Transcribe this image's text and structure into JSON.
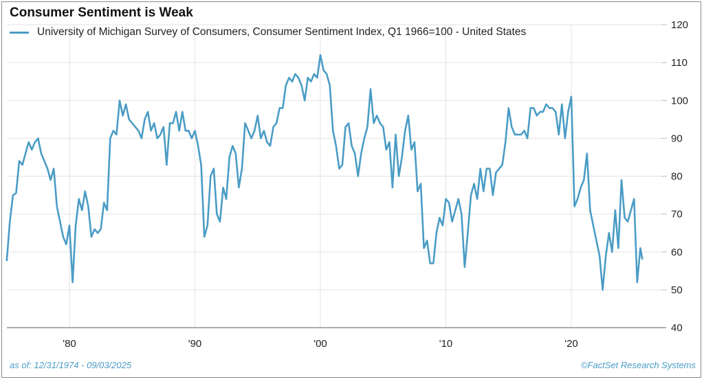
{
  "chart_data": {
    "type": "line",
    "title": "Consumer Sentiment is Weak",
    "xlabel": "",
    "ylabel": "",
    "ylim": [
      40,
      120
    ],
    "yticks": [
      "40",
      "50",
      "60",
      "70",
      "80",
      "90",
      "100",
      "110",
      "120"
    ],
    "xticks": [
      {
        "year": 1980,
        "label": "'80"
      },
      {
        "year": 1990,
        "label": "'90"
      },
      {
        "year": 2000,
        "label": "'00"
      },
      {
        "year": 2010,
        "label": "'10"
      },
      {
        "year": 2020,
        "label": "'20"
      }
    ],
    "grid": true,
    "legend_position": "top-left",
    "color": "#4a9cc5",
    "series": [
      {
        "name": "University of Michigan Survey of Consumers, Consumer Sentiment Index, Q1 1966=100 - United States",
        "points": [
          [
            "1975-01",
            57.6
          ],
          [
            "1975-04",
            68
          ],
          [
            "1975-07",
            75
          ],
          [
            "1975-10",
            75.5
          ],
          [
            "1976-01",
            84
          ],
          [
            "1976-04",
            83
          ],
          [
            "1976-07",
            86
          ],
          [
            "1976-10",
            89
          ],
          [
            "1977-01",
            87
          ],
          [
            "1977-04",
            89
          ],
          [
            "1977-07",
            90
          ],
          [
            "1977-10",
            86
          ],
          [
            "1978-01",
            84
          ],
          [
            "1978-04",
            82
          ],
          [
            "1978-07",
            79
          ],
          [
            "1978-10",
            82
          ],
          [
            "1979-01",
            72
          ],
          [
            "1979-04",
            68
          ],
          [
            "1979-07",
            64
          ],
          [
            "1979-10",
            62
          ],
          [
            "1980-01",
            67
          ],
          [
            "1980-04",
            52
          ],
          [
            "1980-07",
            67
          ],
          [
            "1980-10",
            74
          ],
          [
            "1981-01",
            71
          ],
          [
            "1981-04",
            76
          ],
          [
            "1981-07",
            72
          ],
          [
            "1981-10",
            64
          ],
          [
            "1982-01",
            66
          ],
          [
            "1982-04",
            65
          ],
          [
            "1982-07",
            66
          ],
          [
            "1982-10",
            73
          ],
          [
            "1983-01",
            71
          ],
          [
            "1983-04",
            90
          ],
          [
            "1983-07",
            92
          ],
          [
            "1983-10",
            91
          ],
          [
            "1984-01",
            100
          ],
          [
            "1984-04",
            96
          ],
          [
            "1984-07",
            99
          ],
          [
            "1984-10",
            95
          ],
          [
            "1985-01",
            94
          ],
          [
            "1985-04",
            93
          ],
          [
            "1985-07",
            92
          ],
          [
            "1985-10",
            90
          ],
          [
            "1986-01",
            95
          ],
          [
            "1986-04",
            97
          ],
          [
            "1986-07",
            92
          ],
          [
            "1986-10",
            94
          ],
          [
            "1987-01",
            90
          ],
          [
            "1987-04",
            91
          ],
          [
            "1987-07",
            93
          ],
          [
            "1987-10",
            83
          ],
          [
            "1988-01",
            94
          ],
          [
            "1988-04",
            94
          ],
          [
            "1988-07",
            97
          ],
          [
            "1988-10",
            92
          ],
          [
            "1989-01",
            97
          ],
          [
            "1989-04",
            92
          ],
          [
            "1989-07",
            92
          ],
          [
            "1989-10",
            90
          ],
          [
            "1990-01",
            92
          ],
          [
            "1990-04",
            88
          ],
          [
            "1990-07",
            83
          ],
          [
            "1990-10",
            64
          ],
          [
            "1991-01",
            67
          ],
          [
            "1991-04",
            80
          ],
          [
            "1991-07",
            82
          ],
          [
            "1991-10",
            70
          ],
          [
            "1992-01",
            68
          ],
          [
            "1992-04",
            77
          ],
          [
            "1992-07",
            74
          ],
          [
            "1992-10",
            85
          ],
          [
            "1993-01",
            88
          ],
          [
            "1993-04",
            86
          ],
          [
            "1993-07",
            77
          ],
          [
            "1993-10",
            82
          ],
          [
            "1994-01",
            94
          ],
          [
            "1994-04",
            92
          ],
          [
            "1994-07",
            90
          ],
          [
            "1994-10",
            92
          ],
          [
            "1995-01",
            96
          ],
          [
            "1995-04",
            90
          ],
          [
            "1995-07",
            92
          ],
          [
            "1995-10",
            89
          ],
          [
            "1996-01",
            88
          ],
          [
            "1996-04",
            93
          ],
          [
            "1996-07",
            94
          ],
          [
            "1996-10",
            98
          ],
          [
            "1997-01",
            98
          ],
          [
            "1997-04",
            104
          ],
          [
            "1997-07",
            106
          ],
          [
            "1997-10",
            105
          ],
          [
            "1998-01",
            107
          ],
          [
            "1998-04",
            106
          ],
          [
            "1998-07",
            104
          ],
          [
            "1998-10",
            100
          ],
          [
            "1999-01",
            106
          ],
          [
            "1999-04",
            105
          ],
          [
            "1999-07",
            107
          ],
          [
            "1999-10",
            106
          ],
          [
            "2000-01",
            112
          ],
          [
            "2000-04",
            108
          ],
          [
            "2000-07",
            107
          ],
          [
            "2000-10",
            104
          ],
          [
            "2001-01",
            92
          ],
          [
            "2001-04",
            88
          ],
          [
            "2001-07",
            82
          ],
          [
            "2001-10",
            83
          ],
          [
            "2002-01",
            93
          ],
          [
            "2002-04",
            94
          ],
          [
            "2002-07",
            88
          ],
          [
            "2002-10",
            86
          ],
          [
            "2003-01",
            80
          ],
          [
            "2003-04",
            86
          ],
          [
            "2003-07",
            90
          ],
          [
            "2003-10",
            93
          ],
          [
            "2004-01",
            103
          ],
          [
            "2004-04",
            94
          ],
          [
            "2004-07",
            96
          ],
          [
            "2004-10",
            94
          ],
          [
            "2005-01",
            93
          ],
          [
            "2005-04",
            87
          ],
          [
            "2005-07",
            89
          ],
          [
            "2005-10",
            77
          ],
          [
            "2006-01",
            91
          ],
          [
            "2006-04",
            80
          ],
          [
            "2006-07",
            85
          ],
          [
            "2006-10",
            92
          ],
          [
            "2007-01",
            96
          ],
          [
            "2007-04",
            87
          ],
          [
            "2007-07",
            89
          ],
          [
            "2007-10",
            76
          ],
          [
            "2008-01",
            78
          ],
          [
            "2008-04",
            61
          ],
          [
            "2008-07",
            63
          ],
          [
            "2008-10",
            57
          ],
          [
            "2009-01",
            57
          ],
          [
            "2009-04",
            65
          ],
          [
            "2009-07",
            69
          ],
          [
            "2009-10",
            67
          ],
          [
            "2010-01",
            74
          ],
          [
            "2010-04",
            73
          ],
          [
            "2010-07",
            68
          ],
          [
            "2010-10",
            71
          ],
          [
            "2011-01",
            74
          ],
          [
            "2011-04",
            70
          ],
          [
            "2011-07",
            56
          ],
          [
            "2011-10",
            65
          ],
          [
            "2012-01",
            75
          ],
          [
            "2012-04",
            78
          ],
          [
            "2012-07",
            74
          ],
          [
            "2012-10",
            82
          ],
          [
            "2013-01",
            76
          ],
          [
            "2013-04",
            82
          ],
          [
            "2013-07",
            82
          ],
          [
            "2013-10",
            75
          ],
          [
            "2014-01",
            81
          ],
          [
            "2014-04",
            82
          ],
          [
            "2014-07",
            83
          ],
          [
            "2014-10",
            89
          ],
          [
            "2015-01",
            98
          ],
          [
            "2015-04",
            93
          ],
          [
            "2015-07",
            91
          ],
          [
            "2015-10",
            91
          ],
          [
            "2016-01",
            91
          ],
          [
            "2016-04",
            92
          ],
          [
            "2016-07",
            90
          ],
          [
            "2016-10",
            98
          ],
          [
            "2017-01",
            98
          ],
          [
            "2017-04",
            96
          ],
          [
            "2017-07",
            97
          ],
          [
            "2017-10",
            97
          ],
          [
            "2018-01",
            99
          ],
          [
            "2018-04",
            98
          ],
          [
            "2018-07",
            98
          ],
          [
            "2018-10",
            97
          ],
          [
            "2019-01",
            91
          ],
          [
            "2019-04",
            99
          ],
          [
            "2019-07",
            90
          ],
          [
            "2019-10",
            97
          ],
          [
            "2020-01",
            101
          ],
          [
            "2020-04",
            72
          ],
          [
            "2020-07",
            74
          ],
          [
            "2020-10",
            77
          ],
          [
            "2021-01",
            79
          ],
          [
            "2021-04",
            86
          ],
          [
            "2021-07",
            71
          ],
          [
            "2021-10",
            67
          ],
          [
            "2022-01",
            63
          ],
          [
            "2022-04",
            59
          ],
          [
            "2022-07",
            50
          ],
          [
            "2022-10",
            59
          ],
          [
            "2023-01",
            65
          ],
          [
            "2023-04",
            60
          ],
          [
            "2023-07",
            71
          ],
          [
            "2023-10",
            61
          ],
          [
            "2024-01",
            79
          ],
          [
            "2024-04",
            69
          ],
          [
            "2024-07",
            68
          ],
          [
            "2024-10",
            71
          ],
          [
            "2025-01",
            74
          ],
          [
            "2025-04",
            52
          ],
          [
            "2025-07",
            61
          ],
          [
            "2025-09",
            58
          ]
        ]
      }
    ]
  },
  "legend": {
    "label": "University of Michigan Survey of Consumers, Consumer Sentiment Index, Q1 1966=100 - United States"
  },
  "footer": {
    "as_of": "as of: 12/31/1974 - 09/03/2025",
    "source": "©FactSet Research Systems"
  }
}
